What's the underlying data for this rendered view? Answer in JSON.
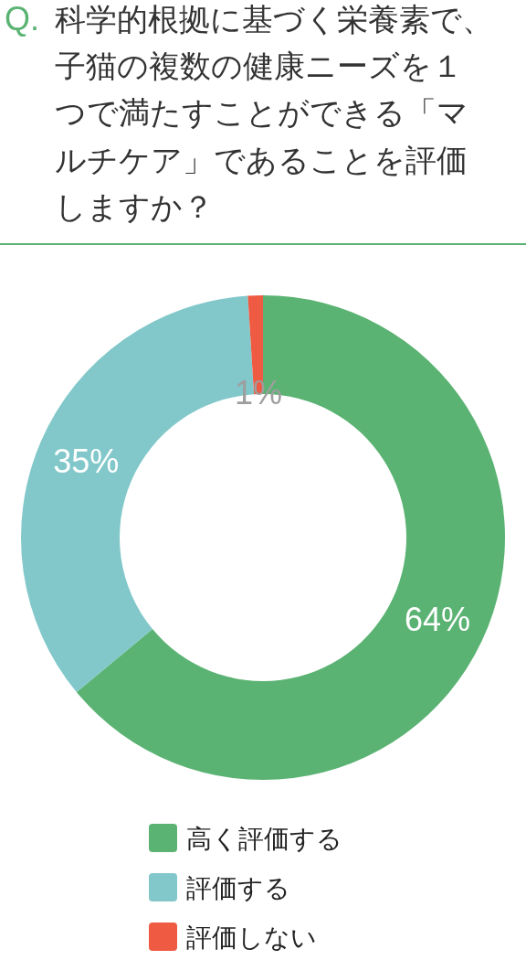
{
  "chart_data": {
    "type": "donut",
    "title": "Q. 科学的根拠に基づく栄養素で、子猫の複数の健康ニーズを１つで満たすことができる「マルチケア」であることを評価しますか？",
    "categories": [
      "高く評価する",
      "評価する",
      "評価しない"
    ],
    "values": [
      64,
      35,
      1
    ],
    "colors": [
      "#5bb373",
      "#82c8ca",
      "#ee5a42"
    ],
    "value_labels": [
      "64%",
      "35%",
      "1%"
    ],
    "legend": "bottom"
  }
}
